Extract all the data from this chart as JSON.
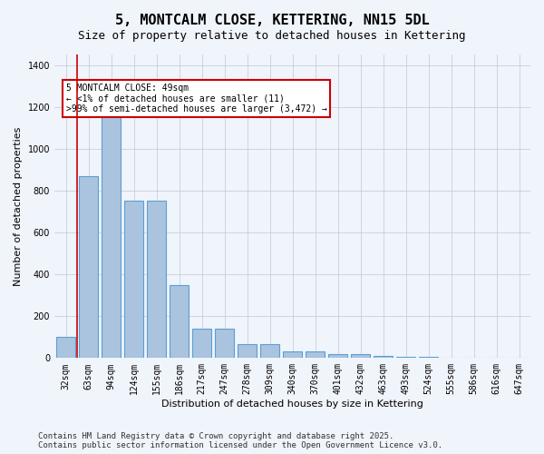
{
  "title": "5, MONTCALM CLOSE, KETTERING, NN15 5DL",
  "subtitle": "Size of property relative to detached houses in Kettering",
  "xlabel": "Distribution of detached houses by size in Kettering",
  "ylabel": "Number of detached properties",
  "categories": [
    "32sqm",
    "63sqm",
    "94sqm",
    "124sqm",
    "155sqm",
    "186sqm",
    "217sqm",
    "247sqm",
    "278sqm",
    "309sqm",
    "340sqm",
    "370sqm",
    "401sqm",
    "432sqm",
    "463sqm",
    "493sqm",
    "524sqm",
    "555sqm",
    "586sqm",
    "616sqm",
    "647sqm"
  ],
  "values": [
    100,
    870,
    1155,
    750,
    750,
    350,
    140,
    140,
    65,
    65,
    30,
    30,
    20,
    20,
    10,
    5,
    5,
    3,
    2,
    1,
    1
  ],
  "bar_color": "#aac4e0",
  "bar_edge_color": "#5a9fd4",
  "bg_color": "#f0f4fb",
  "grid_color": "#c0c8d8",
  "annotation_text": "5 MONTCALM CLOSE: 49sqm\n← <1% of detached houses are smaller (11)\n>99% of semi-detached houses are larger (3,472) →",
  "annotation_box_color": "#ffffff",
  "annotation_box_edge": "#cc0000",
  "vline_x": 0,
  "vline_color": "#cc0000",
  "ylim": [
    0,
    1450
  ],
  "yticks": [
    0,
    200,
    400,
    600,
    800,
    1000,
    1200,
    1400
  ],
  "footer": "Contains HM Land Registry data © Crown copyright and database right 2025.\nContains public sector information licensed under the Open Government Licence v3.0.",
  "title_fontsize": 11,
  "subtitle_fontsize": 9,
  "label_fontsize": 8,
  "tick_fontsize": 7,
  "footer_fontsize": 6.5
}
